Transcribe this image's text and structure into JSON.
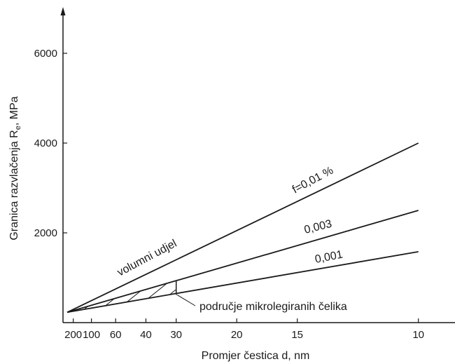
{
  "chart_data": {
    "type": "line",
    "xlabel": "Promjer čestica d, nm",
    "ylabel": "Granica razvlačenja R",
    "ylabel_subscript": "e",
    "ylabel_suffix": ", MPa",
    "x_ticks": [
      {
        "value": 200,
        "label": "200"
      },
      {
        "value": 100,
        "label": "100"
      },
      {
        "value": 60,
        "label": "60"
      },
      {
        "value": 40,
        "label": "40"
      },
      {
        "value": 30,
        "label": "30"
      },
      {
        "value": 20,
        "label": "20"
      },
      {
        "value": 15,
        "label": "15"
      },
      {
        "value": 10,
        "label": "10"
      }
    ],
    "y_ticks": [
      {
        "value": 2000,
        "label": "2000"
      },
      {
        "value": 4000,
        "label": "4000"
      },
      {
        "value": 6000,
        "label": "6000"
      }
    ],
    "ylim": [
      0,
      6200
    ],
    "series": [
      {
        "name": "f=0,01 %",
        "points": [
          [
            300,
            230
          ],
          [
            10,
            4000
          ]
        ]
      },
      {
        "name": "0,003",
        "points": [
          [
            300,
            230
          ],
          [
            10,
            2500
          ]
        ]
      },
      {
        "name": "0,001",
        "points": [
          [
            300,
            230
          ],
          [
            10,
            1580
          ]
        ]
      }
    ],
    "shaded_region": {
      "x_range": [
        300,
        30
      ],
      "between_series": [
        "0,003",
        "0,001"
      ],
      "label": "područje mikrolegiranih čelika"
    },
    "annotations": [
      {
        "text": "volumni udjel"
      }
    ]
  }
}
